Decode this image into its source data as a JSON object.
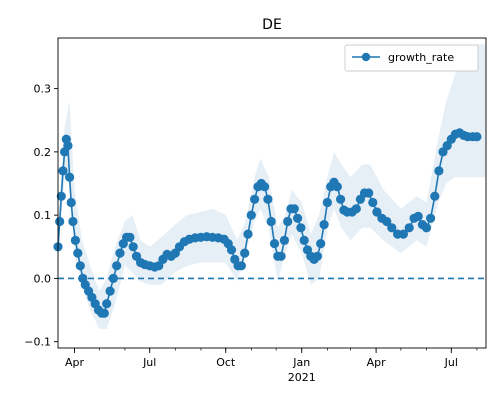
{
  "chart_data": {
    "type": "line",
    "title": "DE",
    "xlabel": "",
    "ylabel": "",
    "x_range": [
      "2020-03-12",
      "2021-08-12"
    ],
    "ylim": [
      -0.11,
      0.38
    ],
    "y_ticks": [
      -0.1,
      0.0,
      0.1,
      0.2,
      0.3
    ],
    "y_tick_labels": [
      "−0.1",
      "0.0",
      "0.1",
      "0.2",
      "0.3"
    ],
    "x_ticks": [
      {
        "date": "2020-04-01",
        "label": "Apr"
      },
      {
        "date": "2020-07-01",
        "label": "Jul"
      },
      {
        "date": "2020-10-01",
        "label": "Oct"
      },
      {
        "date": "2021-01-01",
        "label": "Jan"
      },
      {
        "date": "2021-04-01",
        "label": "Apr"
      },
      {
        "date": "2021-07-01",
        "label": "Jul"
      }
    ],
    "x_year_label": {
      "date": "2021-01-01",
      "label": "2021"
    },
    "reference_line": {
      "y": 0.0,
      "style": "dashed"
    },
    "legend": {
      "position": "top-right",
      "entries": [
        "growth_rate"
      ]
    },
    "colors": {
      "series": "#1f77b4",
      "band": "#dde8f3"
    },
    "series": [
      {
        "name": "growth_rate",
        "points": [
          [
            "2020-03-12",
            0.05
          ],
          [
            "2020-03-14",
            0.09
          ],
          [
            "2020-03-16",
            0.13
          ],
          [
            "2020-03-18",
            0.17
          ],
          [
            "2020-03-20",
            0.2
          ],
          [
            "2020-03-22",
            0.22
          ],
          [
            "2020-03-24",
            0.21
          ],
          [
            "2020-03-26",
            0.16
          ],
          [
            "2020-03-28",
            0.12
          ],
          [
            "2020-03-30",
            0.09
          ],
          [
            "2020-04-02",
            0.06
          ],
          [
            "2020-04-05",
            0.04
          ],
          [
            "2020-04-08",
            0.02
          ],
          [
            "2020-04-11",
            0.0
          ],
          [
            "2020-04-14",
            -0.01
          ],
          [
            "2020-04-18",
            -0.02
          ],
          [
            "2020-04-22",
            -0.03
          ],
          [
            "2020-04-26",
            -0.04
          ],
          [
            "2020-04-30",
            -0.05
          ],
          [
            "2020-05-04",
            -0.055
          ],
          [
            "2020-05-07",
            -0.055
          ],
          [
            "2020-05-10",
            -0.04
          ],
          [
            "2020-05-14",
            -0.02
          ],
          [
            "2020-05-18",
            0.0
          ],
          [
            "2020-05-22",
            0.02
          ],
          [
            "2020-05-26",
            0.04
          ],
          [
            "2020-05-30",
            0.055
          ],
          [
            "2020-06-03",
            0.065
          ],
          [
            "2020-06-07",
            0.065
          ],
          [
            "2020-06-11",
            0.05
          ],
          [
            "2020-06-15",
            0.035
          ],
          [
            "2020-06-20",
            0.025
          ],
          [
            "2020-06-25",
            0.022
          ],
          [
            "2020-07-01",
            0.02
          ],
          [
            "2020-07-07",
            0.018
          ],
          [
            "2020-07-12",
            0.02
          ],
          [
            "2020-07-17",
            0.03
          ],
          [
            "2020-07-22",
            0.038
          ],
          [
            "2020-07-27",
            0.035
          ],
          [
            "2020-08-01",
            0.04
          ],
          [
            "2020-08-06",
            0.05
          ],
          [
            "2020-08-12",
            0.058
          ],
          [
            "2020-08-18",
            0.062
          ],
          [
            "2020-08-25",
            0.064
          ],
          [
            "2020-09-01",
            0.065
          ],
          [
            "2020-09-08",
            0.066
          ],
          [
            "2020-09-15",
            0.065
          ],
          [
            "2020-09-22",
            0.064
          ],
          [
            "2020-09-29",
            0.062
          ],
          [
            "2020-10-04",
            0.055
          ],
          [
            "2020-10-08",
            0.045
          ],
          [
            "2020-10-12",
            0.03
          ],
          [
            "2020-10-16",
            0.02
          ],
          [
            "2020-10-20",
            0.02
          ],
          [
            "2020-10-24",
            0.04
          ],
          [
            "2020-10-28",
            0.07
          ],
          [
            "2020-11-01",
            0.1
          ],
          [
            "2020-11-05",
            0.125
          ],
          [
            "2020-11-09",
            0.145
          ],
          [
            "2020-11-13",
            0.15
          ],
          [
            "2020-11-17",
            0.145
          ],
          [
            "2020-11-21",
            0.125
          ],
          [
            "2020-11-25",
            0.09
          ],
          [
            "2020-11-29",
            0.055
          ],
          [
            "2020-12-03",
            0.035
          ],
          [
            "2020-12-07",
            0.035
          ],
          [
            "2020-12-11",
            0.06
          ],
          [
            "2020-12-15",
            0.09
          ],
          [
            "2020-12-19",
            0.11
          ],
          [
            "2020-12-23",
            0.11
          ],
          [
            "2020-12-27",
            0.095
          ],
          [
            "2020-12-31",
            0.08
          ],
          [
            "2021-01-04",
            0.06
          ],
          [
            "2021-01-08",
            0.045
          ],
          [
            "2021-01-12",
            0.035
          ],
          [
            "2021-01-16",
            0.03
          ],
          [
            "2021-01-20",
            0.035
          ],
          [
            "2021-01-24",
            0.055
          ],
          [
            "2021-01-28",
            0.085
          ],
          [
            "2021-02-01",
            0.12
          ],
          [
            "2021-02-05",
            0.145
          ],
          [
            "2021-02-09",
            0.152
          ],
          [
            "2021-02-13",
            0.145
          ],
          [
            "2021-02-17",
            0.125
          ],
          [
            "2021-02-21",
            0.108
          ],
          [
            "2021-02-25",
            0.105
          ],
          [
            "2021-03-03",
            0.105
          ],
          [
            "2021-03-08",
            0.11
          ],
          [
            "2021-03-13",
            0.125
          ],
          [
            "2021-03-18",
            0.135
          ],
          [
            "2021-03-23",
            0.135
          ],
          [
            "2021-03-28",
            0.12
          ],
          [
            "2021-04-02",
            0.105
          ],
          [
            "2021-04-08",
            0.095
          ],
          [
            "2021-04-14",
            0.09
          ],
          [
            "2021-04-20",
            0.08
          ],
          [
            "2021-04-27",
            0.07
          ],
          [
            "2021-05-04",
            0.07
          ],
          [
            "2021-05-11",
            0.08
          ],
          [
            "2021-05-17",
            0.095
          ],
          [
            "2021-05-22",
            0.098
          ],
          [
            "2021-05-27",
            0.085
          ],
          [
            "2021-06-01",
            0.08
          ],
          [
            "2021-06-06",
            0.095
          ],
          [
            "2021-06-11",
            0.13
          ],
          [
            "2021-06-16",
            0.17
          ],
          [
            "2021-06-21",
            0.2
          ],
          [
            "2021-06-26",
            0.21
          ],
          [
            "2021-07-01",
            0.22
          ],
          [
            "2021-07-06",
            0.228
          ],
          [
            "2021-07-11",
            0.23
          ],
          [
            "2021-07-16",
            0.226
          ],
          [
            "2021-07-21",
            0.224
          ],
          [
            "2021-07-27",
            0.224
          ],
          [
            "2021-08-01",
            0.224
          ]
        ],
        "band_upper": [
          [
            "2020-03-12",
            0.08
          ],
          [
            "2020-03-20",
            0.24
          ],
          [
            "2020-03-26",
            0.28
          ],
          [
            "2020-04-01",
            0.14
          ],
          [
            "2020-04-10",
            0.06
          ],
          [
            "2020-04-20",
            0.02
          ],
          [
            "2020-05-01",
            -0.02
          ],
          [
            "2020-05-10",
            0.0
          ],
          [
            "2020-05-20",
            0.05
          ],
          [
            "2020-06-01",
            0.09
          ],
          [
            "2020-06-10",
            0.1
          ],
          [
            "2020-06-20",
            0.06
          ],
          [
            "2020-07-01",
            0.05
          ],
          [
            "2020-07-15",
            0.065
          ],
          [
            "2020-08-01",
            0.085
          ],
          [
            "2020-08-15",
            0.1
          ],
          [
            "2020-09-01",
            0.105
          ],
          [
            "2020-09-15",
            0.11
          ],
          [
            "2020-10-01",
            0.1
          ],
          [
            "2020-10-15",
            0.06
          ],
          [
            "2020-10-25",
            0.09
          ],
          [
            "2020-11-05",
            0.16
          ],
          [
            "2020-11-12",
            0.19
          ],
          [
            "2020-11-22",
            0.16
          ],
          [
            "2020-12-03",
            0.08
          ],
          [
            "2020-12-12",
            0.1
          ],
          [
            "2020-12-20",
            0.14
          ],
          [
            "2021-01-01",
            0.12
          ],
          [
            "2021-01-12",
            0.07
          ],
          [
            "2021-01-22",
            0.1
          ],
          [
            "2021-02-01",
            0.16
          ],
          [
            "2021-02-09",
            0.2
          ],
          [
            "2021-02-18",
            0.18
          ],
          [
            "2021-03-01",
            0.16
          ],
          [
            "2021-03-15",
            0.18
          ],
          [
            "2021-03-25",
            0.18
          ],
          [
            "2021-04-10",
            0.14
          ],
          [
            "2021-05-01",
            0.11
          ],
          [
            "2021-05-20",
            0.13
          ],
          [
            "2021-06-01",
            0.12
          ],
          [
            "2021-06-15",
            0.22
          ],
          [
            "2021-06-25",
            0.28
          ],
          [
            "2021-07-05",
            0.32
          ],
          [
            "2021-07-15",
            0.36
          ],
          [
            "2021-08-01",
            0.37
          ],
          [
            "2021-08-12",
            0.37
          ]
        ],
        "band_lower": [
          [
            "2020-03-12",
            0.03
          ],
          [
            "2020-03-20",
            0.16
          ],
          [
            "2020-03-26",
            0.15
          ],
          [
            "2020-04-01",
            0.04
          ],
          [
            "2020-04-10",
            -0.01
          ],
          [
            "2020-04-20",
            -0.05
          ],
          [
            "2020-05-01",
            -0.08
          ],
          [
            "2020-05-10",
            -0.08
          ],
          [
            "2020-05-20",
            -0.04
          ],
          [
            "2020-06-01",
            0.02
          ],
          [
            "2020-06-10",
            0.01
          ],
          [
            "2020-06-20",
            -0.005
          ],
          [
            "2020-07-01",
            -0.01
          ],
          [
            "2020-07-15",
            -0.01
          ],
          [
            "2020-08-01",
            0.01
          ],
          [
            "2020-08-15",
            0.02
          ],
          [
            "2020-09-01",
            0.025
          ],
          [
            "2020-09-15",
            0.025
          ],
          [
            "2020-10-01",
            0.025
          ],
          [
            "2020-10-15",
            -0.005
          ],
          [
            "2020-10-25",
            0.04
          ],
          [
            "2020-11-05",
            0.09
          ],
          [
            "2020-11-12",
            0.11
          ],
          [
            "2020-11-22",
            0.08
          ],
          [
            "2020-12-03",
            -0.005
          ],
          [
            "2020-12-12",
            0.04
          ],
          [
            "2020-12-20",
            0.07
          ],
          [
            "2021-01-01",
            0.04
          ],
          [
            "2021-01-12",
            -0.01
          ],
          [
            "2021-01-22",
            0.0
          ],
          [
            "2021-02-01",
            0.08
          ],
          [
            "2021-02-09",
            0.11
          ],
          [
            "2021-02-18",
            0.08
          ],
          [
            "2021-03-01",
            0.06
          ],
          [
            "2021-03-15",
            0.08
          ],
          [
            "2021-03-25",
            0.08
          ],
          [
            "2021-04-10",
            0.06
          ],
          [
            "2021-05-01",
            0.04
          ],
          [
            "2021-05-20",
            0.06
          ],
          [
            "2021-06-01",
            0.05
          ],
          [
            "2021-06-15",
            0.12
          ],
          [
            "2021-06-25",
            0.15
          ],
          [
            "2021-07-05",
            0.16
          ],
          [
            "2021-07-15",
            0.16
          ],
          [
            "2021-08-01",
            0.16
          ],
          [
            "2021-08-12",
            0.16
          ]
        ]
      }
    ]
  }
}
